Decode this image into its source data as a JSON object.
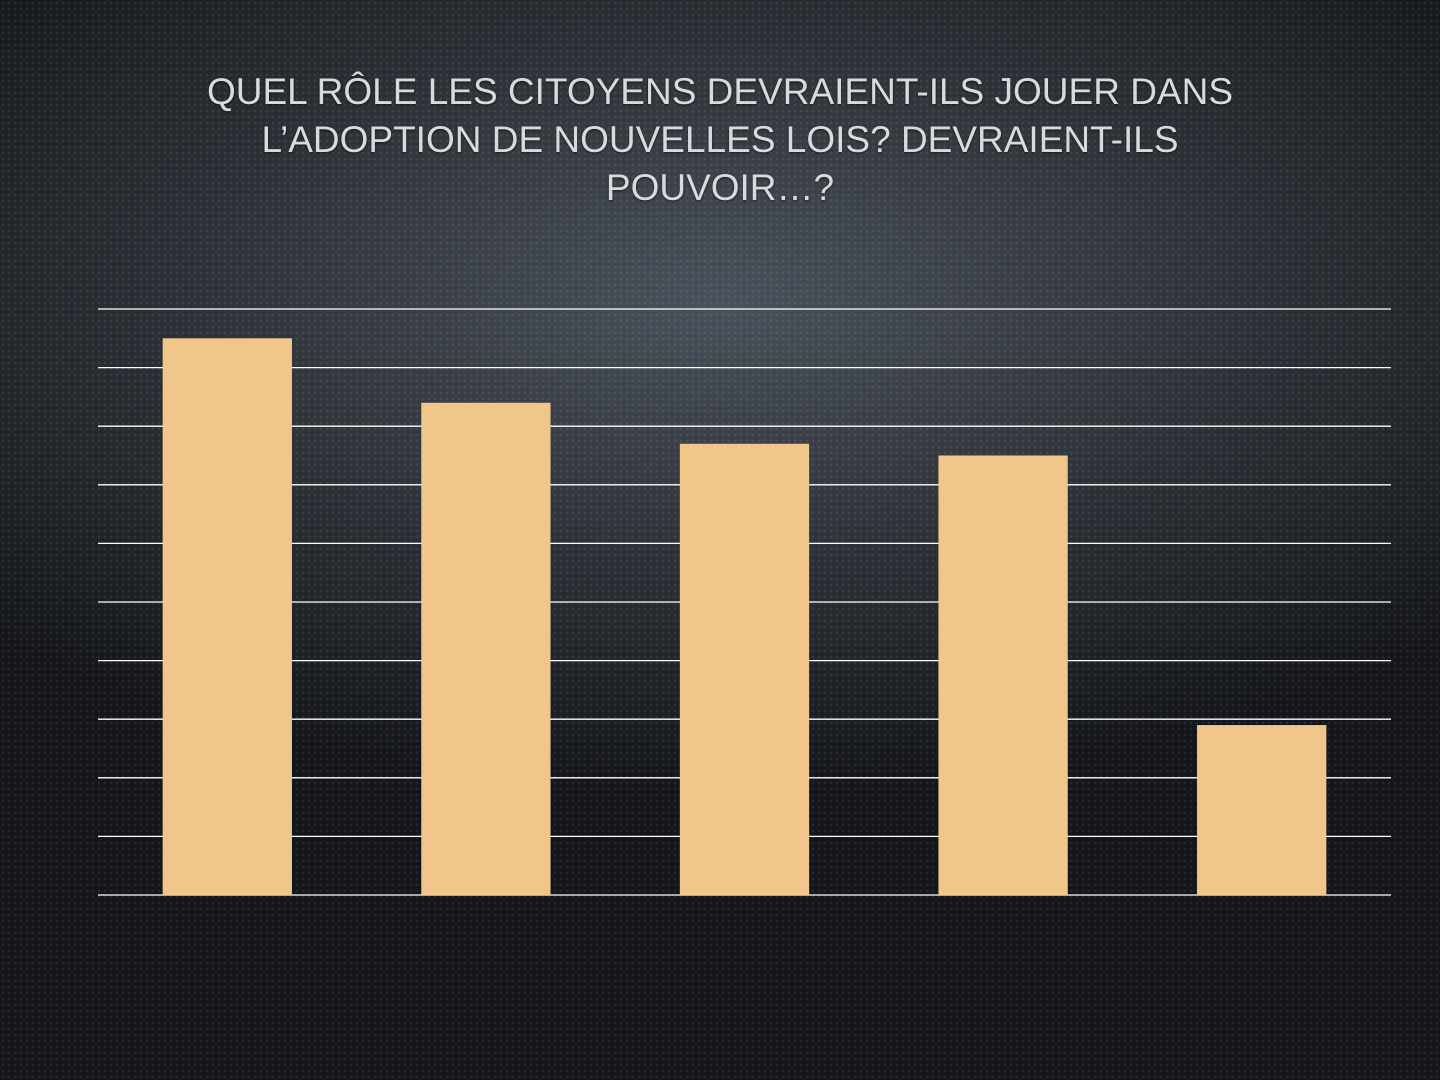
{
  "chart_data": {
    "type": "bar",
    "title": "QUEL RÔLE LES CITOYENS DEVRAIENT-ILS JOUER DANS L’ADOPTION DE NOUVELLES LOIS? DEVRAIENT-ILS POUVOIR…?",
    "categories": [
      null,
      null,
      null,
      null,
      null
    ],
    "values": [
      9.5,
      8.4,
      7.7,
      7.5,
      2.9
    ],
    "color": "#f1c68a",
    "ylim": [
      0,
      10
    ],
    "yticks": [
      0,
      1,
      2,
      3,
      4,
      5,
      6,
      7,
      8,
      9,
      10
    ],
    "grid": true
  }
}
